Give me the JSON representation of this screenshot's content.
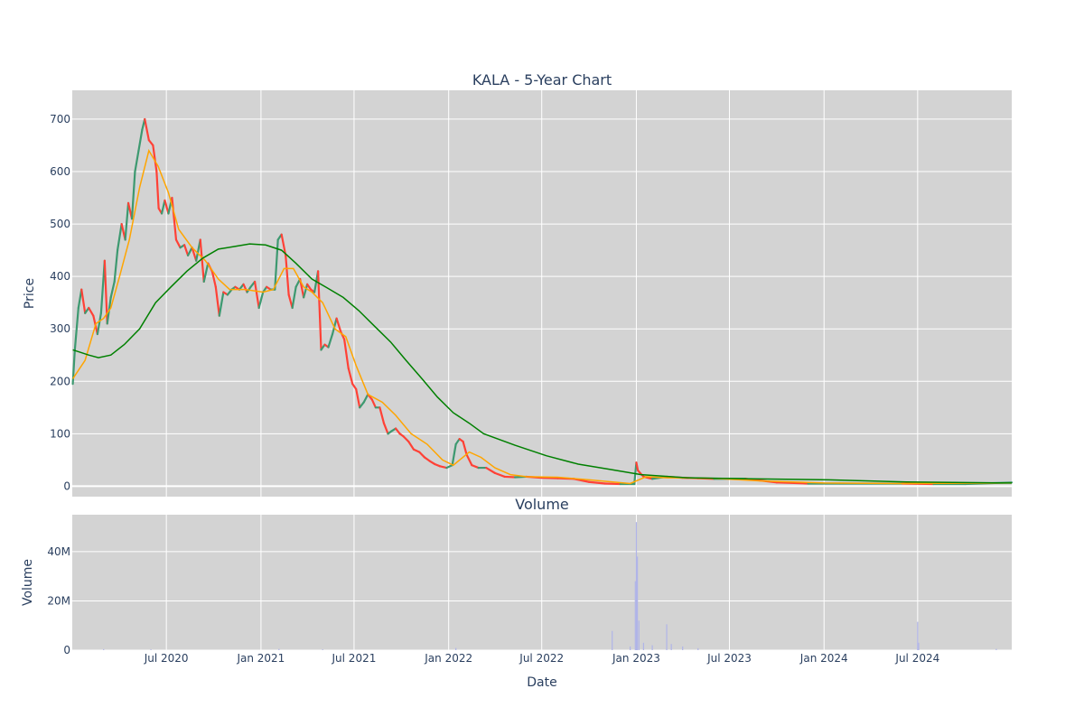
{
  "chart_data": [
    {
      "type": "candlestick",
      "title": "KALA - 5-Year Chart",
      "ylabel": "Price",
      "ylim": [
        -20,
        755
      ],
      "xlim": [
        "2019-12-31",
        "2024-12-31"
      ],
      "y_ticks": [
        0,
        100,
        200,
        300,
        400,
        500,
        600,
        700
      ],
      "y_tick_labels": [
        "0",
        "100",
        "200",
        "300",
        "400",
        "500",
        "600",
        "700"
      ],
      "grid": true,
      "background": "#d3d3d3",
      "colors": {
        "up": "#3d9970",
        "down": "#ff4136",
        "ma_short": "#ffa500",
        "ma_long": "#008000"
      },
      "price_points": [
        [
          "2020-01-01",
          195
        ],
        [
          "2020-01-05",
          260
        ],
        [
          "2020-01-12",
          340
        ],
        [
          "2020-01-18",
          375
        ],
        [
          "2020-01-25",
          330
        ],
        [
          "2020-02-01",
          340
        ],
        [
          "2020-02-10",
          325
        ],
        [
          "2020-02-18",
          290
        ],
        [
          "2020-02-25",
          330
        ],
        [
          "2020-03-03",
          430
        ],
        [
          "2020-03-08",
          310
        ],
        [
          "2020-03-15",
          360
        ],
        [
          "2020-03-22",
          390
        ],
        [
          "2020-03-28",
          450
        ],
        [
          "2020-04-05",
          500
        ],
        [
          "2020-04-12",
          470
        ],
        [
          "2020-04-18",
          540
        ],
        [
          "2020-04-25",
          510
        ],
        [
          "2020-05-01",
          600
        ],
        [
          "2020-05-08",
          640
        ],
        [
          "2020-05-15",
          680
        ],
        [
          "2020-05-20",
          700
        ],
        [
          "2020-05-28",
          660
        ],
        [
          "2020-06-05",
          650
        ],
        [
          "2020-06-12",
          600
        ],
        [
          "2020-06-16",
          530
        ],
        [
          "2020-06-22",
          520
        ],
        [
          "2020-06-28",
          545
        ],
        [
          "2020-07-05",
          520
        ],
        [
          "2020-07-12",
          550
        ],
        [
          "2020-07-20",
          470
        ],
        [
          "2020-07-28",
          455
        ],
        [
          "2020-08-05",
          460
        ],
        [
          "2020-08-12",
          440
        ],
        [
          "2020-08-20",
          455
        ],
        [
          "2020-08-28",
          430
        ],
        [
          "2020-09-05",
          470
        ],
        [
          "2020-09-12",
          390
        ],
        [
          "2020-09-20",
          425
        ],
        [
          "2020-09-28",
          410
        ],
        [
          "2020-10-05",
          380
        ],
        [
          "2020-10-12",
          325
        ],
        [
          "2020-10-20",
          370
        ],
        [
          "2020-10-28",
          365
        ],
        [
          "2020-11-05",
          375
        ],
        [
          "2020-11-12",
          380
        ],
        [
          "2020-11-20",
          375
        ],
        [
          "2020-11-28",
          385
        ],
        [
          "2020-12-05",
          370
        ],
        [
          "2020-12-12",
          380
        ],
        [
          "2020-12-20",
          390
        ],
        [
          "2020-12-28",
          340
        ],
        [
          "2021-01-05",
          370
        ],
        [
          "2021-01-12",
          380
        ],
        [
          "2021-01-20",
          375
        ],
        [
          "2021-01-28",
          375
        ],
        [
          "2021-02-03",
          470
        ],
        [
          "2021-02-10",
          480
        ],
        [
          "2021-02-18",
          440
        ],
        [
          "2021-02-24",
          365
        ],
        [
          "2021-03-03",
          340
        ],
        [
          "2021-03-10",
          380
        ],
        [
          "2021-03-18",
          395
        ],
        [
          "2021-03-25",
          360
        ],
        [
          "2021-04-01",
          385
        ],
        [
          "2021-04-08",
          375
        ],
        [
          "2021-04-15",
          370
        ],
        [
          "2021-04-22",
          410
        ],
        [
          "2021-04-28",
          260
        ],
        [
          "2021-05-05",
          270
        ],
        [
          "2021-05-12",
          265
        ],
        [
          "2021-05-20",
          290
        ],
        [
          "2021-05-28",
          320
        ],
        [
          "2021-06-05",
          295
        ],
        [
          "2021-06-12",
          280
        ],
        [
          "2021-06-20",
          225
        ],
        [
          "2021-06-28",
          195
        ],
        [
          "2021-07-05",
          185
        ],
        [
          "2021-07-12",
          150
        ],
        [
          "2021-07-20",
          160
        ],
        [
          "2021-07-28",
          175
        ],
        [
          "2021-08-05",
          165
        ],
        [
          "2021-08-12",
          150
        ],
        [
          "2021-08-20",
          150
        ],
        [
          "2021-08-28",
          120
        ],
        [
          "2021-09-05",
          100
        ],
        [
          "2021-09-12",
          105
        ],
        [
          "2021-09-20",
          110
        ],
        [
          "2021-09-28",
          100
        ],
        [
          "2021-10-05",
          95
        ],
        [
          "2021-10-15",
          85
        ],
        [
          "2021-10-25",
          70
        ],
        [
          "2021-11-05",
          65
        ],
        [
          "2021-11-15",
          55
        ],
        [
          "2021-11-25",
          48
        ],
        [
          "2021-12-05",
          42
        ],
        [
          "2021-12-15",
          38
        ],
        [
          "2021-12-28",
          35
        ],
        [
          "2022-01-08",
          40
        ],
        [
          "2022-01-15",
          80
        ],
        [
          "2022-01-22",
          90
        ],
        [
          "2022-01-29",
          85
        ],
        [
          "2022-02-05",
          60
        ],
        [
          "2022-02-15",
          40
        ],
        [
          "2022-02-28",
          35
        ],
        [
          "2022-03-15",
          35
        ],
        [
          "2022-04-01",
          25
        ],
        [
          "2022-04-20",
          18
        ],
        [
          "2022-05-10",
          17
        ],
        [
          "2022-06-01",
          18
        ],
        [
          "2022-07-01",
          16
        ],
        [
          "2022-08-01",
          15
        ],
        [
          "2022-09-01",
          14
        ],
        [
          "2022-10-01",
          8
        ],
        [
          "2022-11-01",
          5
        ],
        [
          "2022-12-01",
          4
        ],
        [
          "2022-12-28",
          4
        ],
        [
          "2023-01-01",
          45
        ],
        [
          "2023-01-04",
          30
        ],
        [
          "2023-01-15",
          18
        ],
        [
          "2023-02-01",
          14
        ],
        [
          "2023-03-01",
          18
        ],
        [
          "2023-04-01",
          16
        ],
        [
          "2023-05-01",
          15
        ],
        [
          "2023-06-01",
          14
        ],
        [
          "2023-08-01",
          14
        ],
        [
          "2023-10-01",
          7
        ],
        [
          "2023-12-01",
          5
        ],
        [
          "2024-02-01",
          5
        ],
        [
          "2024-04-01",
          5
        ],
        [
          "2024-06-01",
          5
        ],
        [
          "2024-08-01",
          4
        ],
        [
          "2024-10-01",
          4
        ],
        [
          "2024-12-31",
          7
        ]
      ],
      "ma_short": [
        [
          "2020-01-01",
          205
        ],
        [
          "2020-01-25",
          240
        ],
        [
          "2020-02-15",
          310
        ],
        [
          "2020-03-01",
          320
        ],
        [
          "2020-03-15",
          340
        ],
        [
          "2020-04-01",
          400
        ],
        [
          "2020-04-20",
          470
        ],
        [
          "2020-05-10",
          570
        ],
        [
          "2020-05-28",
          640
        ],
        [
          "2020-06-15",
          610
        ],
        [
          "2020-07-05",
          560
        ],
        [
          "2020-07-25",
          490
        ],
        [
          "2020-08-20",
          455
        ],
        [
          "2020-09-15",
          430
        ],
        [
          "2020-10-10",
          395
        ],
        [
          "2020-11-01",
          375
        ],
        [
          "2020-12-01",
          375
        ],
        [
          "2021-01-05",
          370
        ],
        [
          "2021-01-25",
          375
        ],
        [
          "2021-02-15",
          415
        ],
        [
          "2021-03-05",
          415
        ],
        [
          "2021-03-25",
          380
        ],
        [
          "2021-04-10",
          370
        ],
        [
          "2021-05-01",
          350
        ],
        [
          "2021-05-25",
          300
        ],
        [
          "2021-06-15",
          285
        ],
        [
          "2021-07-05",
          230
        ],
        [
          "2021-07-28",
          175
        ],
        [
          "2021-08-25",
          160
        ],
        [
          "2021-09-20",
          135
        ],
        [
          "2021-10-20",
          100
        ],
        [
          "2021-11-20",
          80
        ],
        [
          "2021-12-20",
          50
        ],
        [
          "2022-01-10",
          40
        ],
        [
          "2022-02-10",
          65
        ],
        [
          "2022-03-05",
          55
        ],
        [
          "2022-04-01",
          35
        ],
        [
          "2022-05-01",
          22
        ],
        [
          "2022-06-01",
          18
        ],
        [
          "2022-08-01",
          17
        ],
        [
          "2022-10-01",
          12
        ],
        [
          "2022-12-20",
          5
        ],
        [
          "2023-01-20",
          18
        ],
        [
          "2023-03-01",
          16
        ],
        [
          "2023-06-01",
          15
        ],
        [
          "2023-09-01",
          10
        ],
        [
          "2024-01-01",
          6
        ],
        [
          "2024-06-01",
          5
        ],
        [
          "2024-12-31",
          6
        ]
      ],
      "ma_long": [
        [
          "2020-01-01",
          260
        ],
        [
          "2020-02-01",
          250
        ],
        [
          "2020-02-20",
          245
        ],
        [
          "2020-03-15",
          250
        ],
        [
          "2020-04-10",
          270
        ],
        [
          "2020-05-10",
          300
        ],
        [
          "2020-06-10",
          350
        ],
        [
          "2020-07-10",
          380
        ],
        [
          "2020-08-10",
          410
        ],
        [
          "2020-09-10",
          435
        ],
        [
          "2020-10-10",
          452
        ],
        [
          "2020-11-10",
          457
        ],
        [
          "2020-12-10",
          462
        ],
        [
          "2021-01-10",
          460
        ],
        [
          "2021-02-10",
          450
        ],
        [
          "2021-03-10",
          425
        ],
        [
          "2021-04-10",
          395
        ],
        [
          "2021-05-10",
          378
        ],
        [
          "2021-06-10",
          360
        ],
        [
          "2021-07-10",
          335
        ],
        [
          "2021-08-10",
          305
        ],
        [
          "2021-09-10",
          275
        ],
        [
          "2021-10-10",
          240
        ],
        [
          "2021-11-10",
          205
        ],
        [
          "2021-12-10",
          170
        ],
        [
          "2022-01-10",
          140
        ],
        [
          "2022-02-10",
          120
        ],
        [
          "2022-03-10",
          100
        ],
        [
          "2022-05-10",
          78
        ],
        [
          "2022-07-10",
          58
        ],
        [
          "2022-09-10",
          42
        ],
        [
          "2022-11-10",
          32
        ],
        [
          "2023-01-10",
          22
        ],
        [
          "2023-04-10",
          16
        ],
        [
          "2023-08-10",
          14
        ],
        [
          "2024-01-10",
          12
        ],
        [
          "2024-06-10",
          8
        ],
        [
          "2024-12-31",
          6
        ]
      ]
    },
    {
      "type": "bar",
      "title": "Volume",
      "xlabel": "Date",
      "ylabel": "Volume",
      "ylim": [
        0,
        55000000
      ],
      "y_ticks": [
        0,
        20000000,
        40000000
      ],
      "y_tick_labels": [
        "0",
        "20M",
        "40M"
      ],
      "x_ticks": [
        "2020-07-01",
        "2021-01-01",
        "2021-07-01",
        "2022-01-01",
        "2022-07-01",
        "2023-01-01",
        "2023-07-01",
        "2024-01-01",
        "2024-07-01"
      ],
      "x_tick_labels": [
        "Jul 2020",
        "Jan 2021",
        "Jul 2021",
        "Jan 2022",
        "Jul 2022",
        "Jan 2023",
        "Jul 2023",
        "Jan 2024",
        "Jul 2024"
      ],
      "grid": true,
      "background": "#d3d3d3",
      "bar_color": "#b0b4e8",
      "volume_points": [
        [
          "2020-03-01",
          400000
        ],
        [
          "2020-06-01",
          300000
        ],
        [
          "2021-02-05",
          500000
        ],
        [
          "2021-05-01",
          300000
        ],
        [
          "2022-01-15",
          900000
        ],
        [
          "2022-11-15",
          7800000
        ],
        [
          "2022-12-20",
          1500000
        ],
        [
          "2022-12-30",
          28000000
        ],
        [
          "2023-01-01",
          52000000
        ],
        [
          "2023-01-03",
          38000000
        ],
        [
          "2023-01-06",
          12000000
        ],
        [
          "2023-01-15",
          3000000
        ],
        [
          "2023-02-01",
          2000000
        ],
        [
          "2023-03-01",
          10500000
        ],
        [
          "2023-03-10",
          2500000
        ],
        [
          "2023-04-01",
          1500000
        ],
        [
          "2023-05-01",
          800000
        ],
        [
          "2024-07-01",
          11500000
        ],
        [
          "2024-07-03",
          3000000
        ],
        [
          "2024-12-01",
          500000
        ]
      ]
    }
  ]
}
